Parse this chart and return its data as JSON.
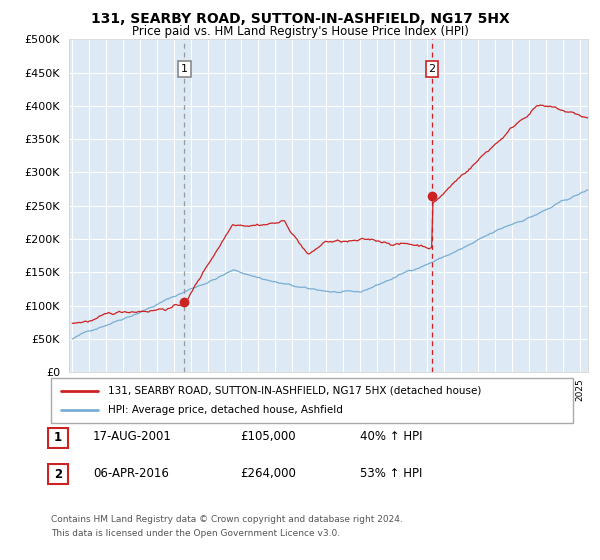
{
  "title": "131, SEARBY ROAD, SUTTON-IN-ASHFIELD, NG17 5HX",
  "subtitle": "Price paid vs. HM Land Registry's House Price Index (HPI)",
  "legend_line1": "131, SEARBY ROAD, SUTTON-IN-ASHFIELD, NG17 5HX (detached house)",
  "legend_line2": "HPI: Average price, detached house, Ashfield",
  "table_row1": [
    "1",
    "17-AUG-2001",
    "£105,000",
    "40% ↑ HPI"
  ],
  "table_row2": [
    "2",
    "06-APR-2016",
    "£264,000",
    "53% ↑ HPI"
  ],
  "footnote1": "Contains HM Land Registry data © Crown copyright and database right 2024.",
  "footnote2": "This data is licensed under the Open Government Licence v3.0.",
  "hpi_color": "#7aadd4",
  "price_color": "#cc2222",
  "marker_color": "#cc2222",
  "bg_color": "#ddeaf5",
  "grid_color": "#ffffff",
  "vline1_color": "#999999",
  "vline2_color": "#cc2222",
  "ylim": [
    0,
    500000
  ],
  "yticks": [
    0,
    50000,
    100000,
    150000,
    200000,
    250000,
    300000,
    350000,
    400000,
    450000,
    500000
  ],
  "sale1_year": 2001.625,
  "sale1_price": 105000,
  "sale2_year": 2016.27,
  "sale2_price": 264000,
  "xstart": 1995,
  "xend": 2025
}
